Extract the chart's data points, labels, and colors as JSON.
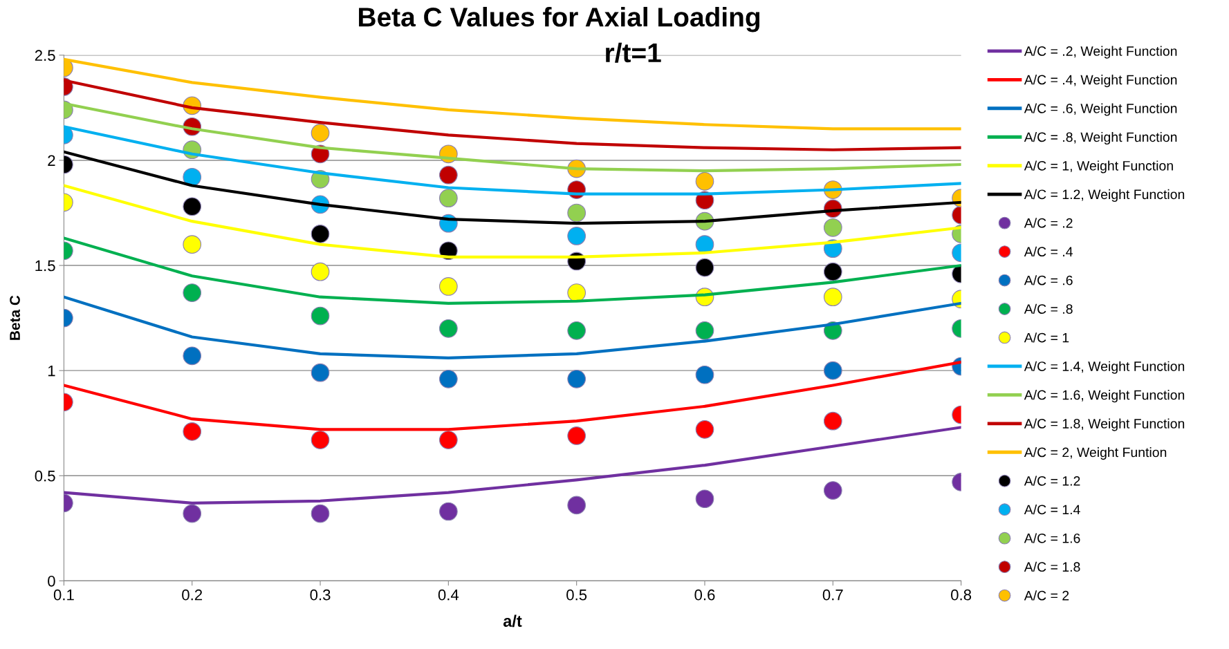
{
  "chart_data": {
    "type": "line",
    "title": "Beta C Values for Axial Loading",
    "subtitle": "r/t=1",
    "xlabel": "a/t",
    "ylabel": "Beta C",
    "x": [
      0.1,
      0.2,
      0.3,
      0.4,
      0.5,
      0.6,
      0.7,
      0.8
    ],
    "xlim": [
      0.1,
      0.8
    ],
    "xticks": [
      0.1,
      0.2,
      0.3,
      0.4,
      0.5,
      0.6,
      0.7,
      0.8
    ],
    "ylim": [
      0,
      2.5
    ],
    "yticks": [
      0,
      0.5,
      1,
      1.5,
      2,
      2.5
    ],
    "grid": "y",
    "legend": "right",
    "series": [
      {
        "name": "A/C = .2, Weight Function",
        "color": "#7030a0",
        "values": [
          0.42,
          0.37,
          0.38,
          0.42,
          0.48,
          0.55,
          0.64,
          0.73
        ]
      },
      {
        "name": "A/C = .4, Weight Function",
        "color": "#ff0000",
        "values": [
          0.93,
          0.77,
          0.72,
          0.72,
          0.76,
          0.83,
          0.93,
          1.04
        ]
      },
      {
        "name": "A/C = .6, Weight Function",
        "color": "#0070c0",
        "values": [
          1.35,
          1.16,
          1.08,
          1.06,
          1.08,
          1.14,
          1.22,
          1.32
        ]
      },
      {
        "name": "A/C = .8, Weight Function",
        "color": "#00b050",
        "values": [
          1.63,
          1.45,
          1.35,
          1.32,
          1.33,
          1.36,
          1.42,
          1.5
        ]
      },
      {
        "name": "A/C = 1, Weight Function",
        "color": "#ffff00",
        "values": [
          1.88,
          1.71,
          1.6,
          1.54,
          1.54,
          1.56,
          1.61,
          1.68
        ]
      },
      {
        "name": "A/C = 1.2, Weight Function",
        "color": "#000000",
        "values": [
          2.04,
          1.88,
          1.79,
          1.72,
          1.7,
          1.71,
          1.76,
          1.8
        ]
      },
      {
        "name": "A/C = .2",
        "type": "scatter",
        "marker": "circle",
        "color": "#7030a0",
        "values": [
          0.37,
          0.32,
          0.32,
          0.33,
          0.36,
          0.39,
          0.43,
          0.47
        ]
      },
      {
        "name": "A/C = .4",
        "type": "scatter",
        "marker": "circle",
        "color": "#ff0000",
        "values": [
          0.85,
          0.71,
          0.67,
          0.67,
          0.69,
          0.72,
          0.76,
          0.79
        ]
      },
      {
        "name": "A/C = .6",
        "type": "scatter",
        "marker": "circle",
        "color": "#0070c0",
        "values": [
          1.25,
          1.07,
          0.99,
          0.96,
          0.96,
          0.98,
          1.0,
          1.02
        ]
      },
      {
        "name": "A/C = .8",
        "type": "scatter",
        "marker": "circle",
        "color": "#00b050",
        "values": [
          1.57,
          1.37,
          1.26,
          1.2,
          1.19,
          1.19,
          1.19,
          1.2
        ]
      },
      {
        "name": "A/C = 1",
        "type": "scatter",
        "marker": "circle",
        "color": "#ffff00",
        "values": [
          1.8,
          1.6,
          1.47,
          1.4,
          1.37,
          1.35,
          1.35,
          1.34
        ]
      },
      {
        "name": "A/C = 1.4, Weight Function",
        "color": "#00b0f0",
        "values": [
          2.16,
          2.03,
          1.94,
          1.87,
          1.84,
          1.84,
          1.86,
          1.89
        ]
      },
      {
        "name": "A/C = 1.6, Weight Function",
        "color": "#92d050",
        "values": [
          2.27,
          2.15,
          2.06,
          2.01,
          1.96,
          1.95,
          1.96,
          1.98
        ]
      },
      {
        "name": "A/C = 1.8, Weight Function",
        "color": "#c00000",
        "values": [
          2.38,
          2.25,
          2.18,
          2.12,
          2.08,
          2.06,
          2.05,
          2.06
        ]
      },
      {
        "name": "A/C = 2, Weight Funtion",
        "color": "#ffc000",
        "values": [
          2.48,
          2.37,
          2.3,
          2.24,
          2.2,
          2.17,
          2.15,
          2.15
        ]
      },
      {
        "name": "A/C = 1.2",
        "type": "scatter",
        "marker": "circle",
        "color": "#000000",
        "values": [
          1.98,
          1.78,
          1.65,
          1.57,
          1.52,
          1.49,
          1.47,
          1.46
        ]
      },
      {
        "name": "A/C = 1.4",
        "type": "scatter",
        "marker": "circle",
        "color": "#00b0f0",
        "values": [
          2.12,
          1.92,
          1.79,
          1.7,
          1.64,
          1.6,
          1.58,
          1.56
        ]
      },
      {
        "name": "A/C = 1.6",
        "type": "scatter",
        "marker": "circle",
        "color": "#92d050",
        "values": [
          2.24,
          2.05,
          1.91,
          1.82,
          1.75,
          1.71,
          1.68,
          1.65
        ]
      },
      {
        "name": "A/C = 1.8",
        "type": "scatter",
        "marker": "circle",
        "color": "#c00000",
        "values": [
          2.35,
          2.16,
          2.03,
          1.93,
          1.86,
          1.81,
          1.77,
          1.74
        ]
      },
      {
        "name": "A/C = 2",
        "type": "scatter",
        "marker": "circle",
        "color": "#ffc000",
        "values": [
          2.44,
          2.26,
          2.13,
          2.03,
          1.96,
          1.9,
          1.86,
          1.82
        ]
      }
    ]
  }
}
